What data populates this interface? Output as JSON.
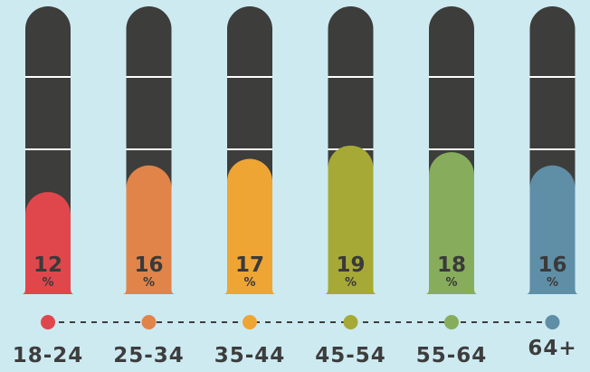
{
  "chart_data": {
    "type": "bar",
    "title": "",
    "xlabel": "",
    "ylabel": "",
    "ylim": [
      0,
      40
    ],
    "categories": [
      "18-24",
      "25-34",
      "35-44",
      "45-54",
      "55-64",
      "64+"
    ],
    "values": [
      12,
      16,
      17,
      19,
      18,
      16
    ],
    "value_suffix": "%",
    "colors": [
      "#e0474c",
      "#e0844a",
      "#eea534",
      "#a6a935",
      "#87ad5c",
      "#5f8ea7"
    ],
    "track_color": "#3d3d3b",
    "background_color": "#cdeaf1"
  }
}
